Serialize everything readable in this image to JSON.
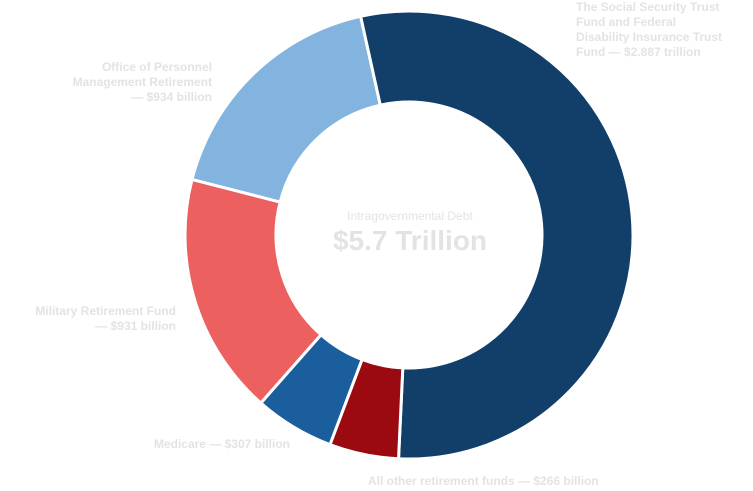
{
  "chart_data": {
    "type": "pie",
    "donut": true,
    "center_title": "Intragovernmental Debt",
    "center_total": "$5.7 Trillion",
    "unit": "billion",
    "slices": [
      {
        "key": "social_security",
        "label": "The Social Security Trust\nFund and Federal\nDisability Insurance Trust\nFund — $2.887 trillion",
        "value": 2887,
        "color": "#123f69"
      },
      {
        "key": "other_retirement",
        "label": "All other retirement funds — $266 billion",
        "value": 266,
        "color": "#9b0a11"
      },
      {
        "key": "medicare",
        "label": "Medicare — $307 billion",
        "value": 307,
        "color": "#1a5e9d"
      },
      {
        "key": "military",
        "label": "Military Retirement Fund\n— $931 billion",
        "value": 931,
        "color": "#ed6060"
      },
      {
        "key": "opm",
        "label": "Office of Personnel\nManagement Retirement\n— $934 billion",
        "value": 934,
        "color": "#82b4df"
      }
    ],
    "legend": "none"
  }
}
